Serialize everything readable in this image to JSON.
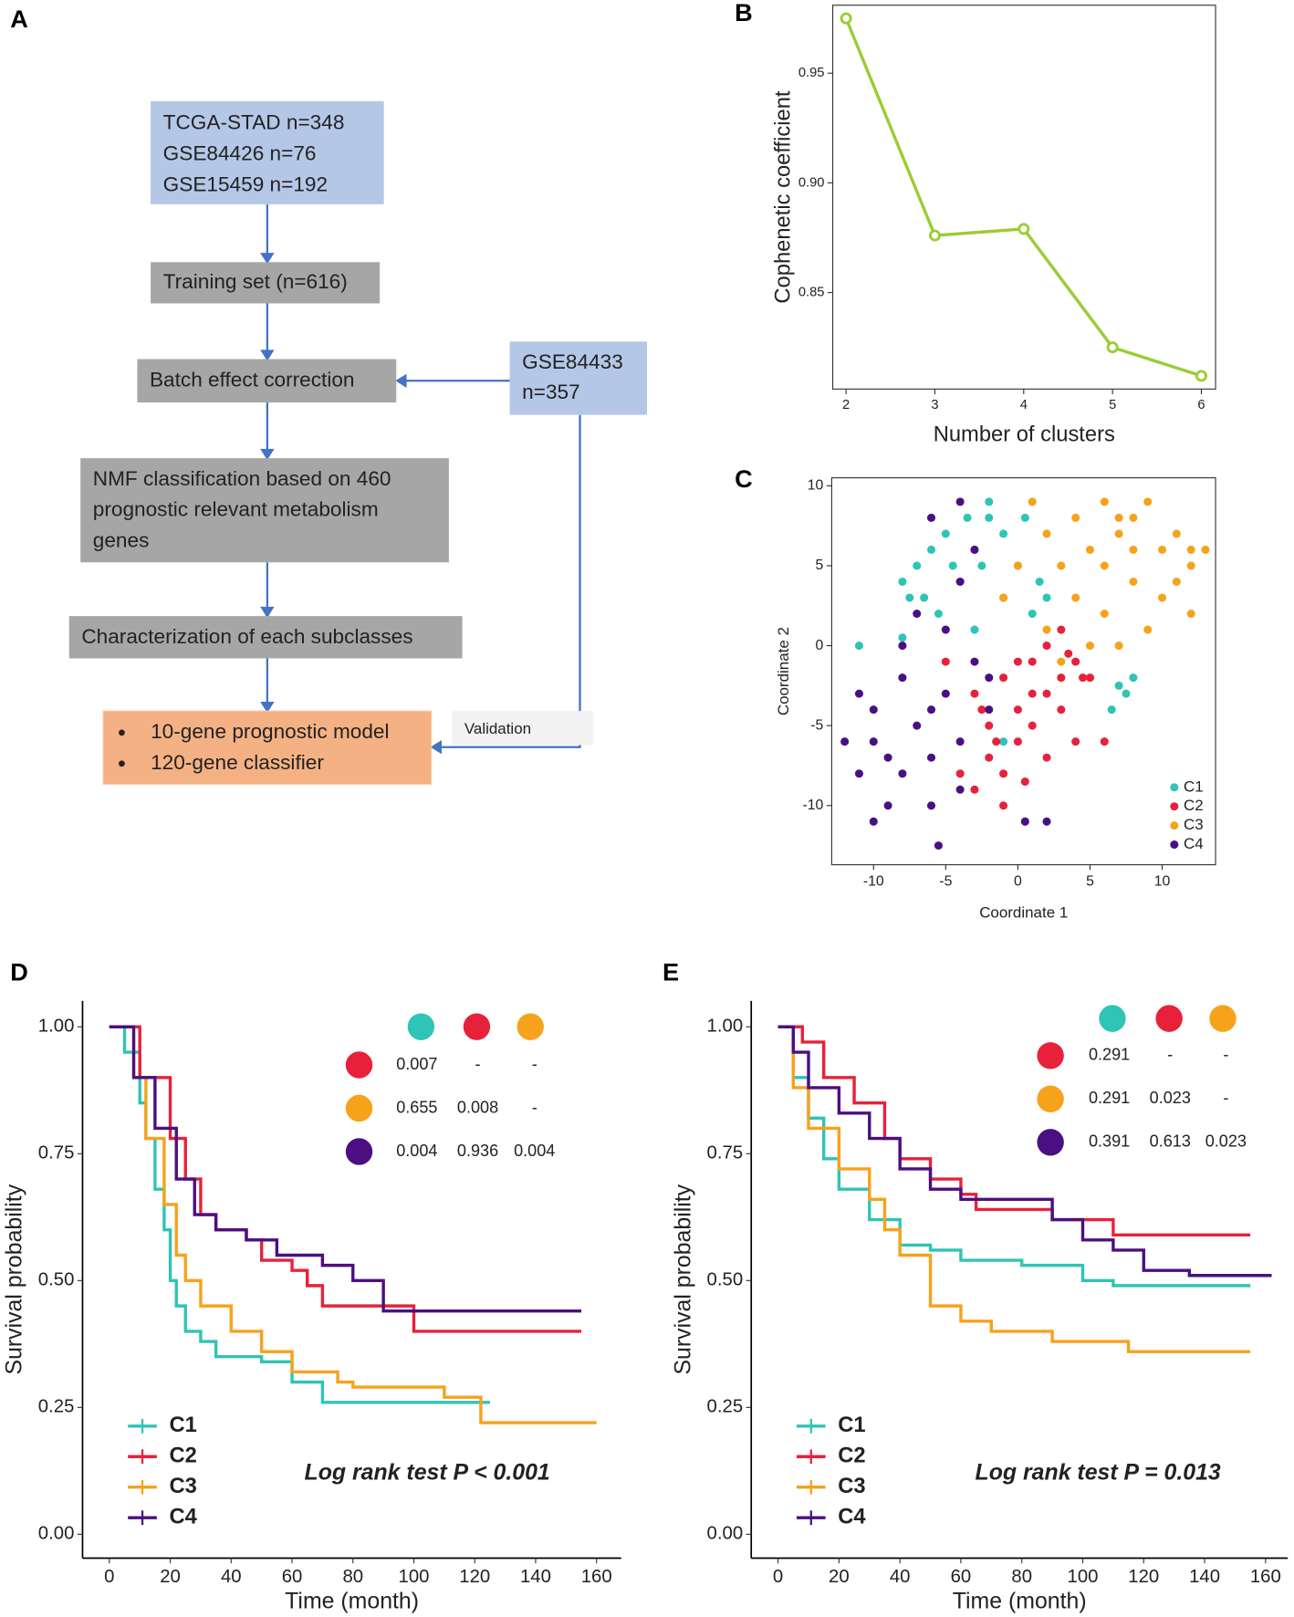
{
  "diagram": {
    "panel": "A",
    "boxes": [
      {
        "lines": [
          "TCGA-STAD n=348",
          "GSE84426 n=76",
          "GSE15459 n=192"
        ]
      },
      {
        "lines": [
          "Training set (n=616)"
        ]
      },
      {
        "lines": [
          "Batch effect correction"
        ]
      },
      {
        "lines": [
          "GSE84433",
          "n=357"
        ]
      },
      {
        "lines": [
          "NMF classification based on 460",
          "prognostic relevant metabolism",
          "genes"
        ]
      },
      {
        "lines": [
          "Characterization of each subclasses"
        ]
      },
      {
        "lines": [
          "10-gene prognostic model",
          "120-gene classifier"
        ]
      }
    ],
    "edge_label": "Validation"
  },
  "chart_data": [
    {
      "type": "line",
      "panel": "B",
      "x_label": "Number of clusters",
      "y_label": "Cophenetic coefficient",
      "x": [
        2,
        3,
        4,
        5,
        6
      ],
      "values": [
        0.975,
        0.876,
        0.879,
        0.825,
        0.812
      ],
      "color": "#9acd32",
      "xlim": [
        1.85,
        6.16
      ],
      "xticks": [
        2,
        3,
        4,
        5,
        6
      ],
      "ylim": [
        0.806,
        0.981
      ],
      "yticks": [
        0.85,
        {
          "value": 0.9,
          "label": "0.90"
        },
        0.95
      ]
    },
    {
      "type": "scatter",
      "panel": "C",
      "x_label": "Coordinate 1",
      "y_label": "Coordinate 2",
      "xlim": [
        -12.9,
        13.7
      ],
      "xticks": [
        -10,
        -5,
        0,
        5,
        10
      ],
      "ylim": [
        -13.7,
        10.5
      ],
      "yticks": [
        -10,
        -5,
        0,
        5,
        10
      ],
      "legend": "bottom-right",
      "series": [
        {
          "name": "C1",
          "color": "#2ec4b6",
          "x": [
            -8,
            -7,
            -6.5,
            -6,
            -5,
            -4,
            -3,
            -2.5,
            -2,
            -1,
            -1,
            0,
            0.5,
            1,
            -5.5,
            -7.5,
            -4.5,
            -3.5,
            -2,
            1.5,
            7,
            7.5,
            8,
            6.5,
            -11,
            -1,
            0.5,
            -8,
            -3,
            2
          ],
          "values": [
            4,
            5,
            3,
            6,
            7,
            4,
            6,
            5,
            8,
            7,
            3,
            5,
            8,
            2,
            2,
            3,
            5,
            8,
            9,
            4,
            -2.5,
            -3,
            -2,
            -4,
            0,
            -6,
            -11,
            0.5,
            1,
            3
          ]
        },
        {
          "name": "C2",
          "color": "#e8213a",
          "x": [
            -3,
            -2,
            -1,
            0,
            1,
            2,
            3,
            4,
            5,
            -2,
            -1,
            0,
            1,
            2,
            3,
            4,
            -4,
            -3,
            2,
            3,
            0,
            1,
            -1,
            6,
            -5,
            -2.5,
            4.5,
            3.5,
            -1.5,
            0.5
          ],
          "values": [
            -3,
            -5,
            -2,
            -4,
            -1,
            -3,
            -2,
            -1,
            -2,
            -7,
            -8,
            -6,
            -5,
            -7,
            -4,
            -6,
            -8,
            -9,
            0,
            1,
            -1,
            -3,
            -10,
            -6,
            -1,
            -4,
            -2,
            -0.5,
            -6,
            -8.5
          ]
        },
        {
          "name": "C3",
          "color": "#f7a21b",
          "x": [
            1,
            2,
            3,
            4,
            5,
            6,
            7,
            8,
            9,
            10,
            11,
            12,
            13,
            2,
            4,
            6,
            8,
            10,
            12,
            3,
            5,
            7,
            9,
            11,
            6,
            8,
            0,
            7,
            12,
            -1
          ],
          "values": [
            9,
            7,
            5,
            8,
            6,
            9,
            7,
            8,
            9,
            6,
            7,
            5,
            6,
            1,
            3,
            2,
            4,
            3,
            2,
            -1,
            0,
            0,
            1,
            4,
            5,
            6,
            5,
            8,
            6,
            3
          ]
        },
        {
          "name": "C4",
          "color": "#4b0f82",
          "x": [
            -12,
            -11,
            -10,
            -9,
            -8,
            -7,
            -6,
            -5,
            -4,
            -3,
            -2,
            -11,
            -10,
            -9,
            -8,
            -7,
            -6,
            -5,
            -4,
            -3,
            -10,
            -8,
            -6,
            -4,
            -2,
            -5.5,
            -4,
            -6,
            0.5,
            2
          ],
          "values": [
            -6,
            -8,
            -4,
            -10,
            -2,
            -5,
            -7,
            -3,
            -9,
            -1,
            -4,
            -3,
            -11,
            -7,
            0,
            2,
            -10,
            1,
            4,
            6,
            -6,
            -8,
            -4,
            -6,
            -2,
            -12.5,
            9,
            8,
            -11,
            -11
          ]
        }
      ]
    },
    {
      "type": "survival",
      "panel": "D",
      "x_label": "Time (month)",
      "y_label": "Survival probability",
      "annotation": "Log rank test P < 0.001",
      "legend": "bottom-left",
      "xlim": [
        -8.8,
        168.1
      ],
      "xticks": [
        0,
        20,
        40,
        60,
        80,
        100,
        120,
        140,
        160
      ],
      "ylim": [
        -0.047,
        1.051
      ],
      "yticks": [
        {
          "value": 0,
          "label": "0.00"
        },
        {
          "value": 0.25,
          "label": "0.25"
        },
        {
          "value": 0.5,
          "label": "0.50"
        },
        {
          "value": 0.75,
          "label": "0.75"
        },
        {
          "value": 1,
          "label": "1.00"
        }
      ],
      "pvalue_table": {
        "column_colors": [
          "#2ec4b6",
          "#e8213a",
          "#f7a21b"
        ],
        "row_colors": [
          "#e8213a",
          "#f7a21b",
          "#4b0f82"
        ],
        "values": [
          [
            0.007,
            "-",
            "-"
          ],
          [
            0.655,
            0.008,
            "-"
          ],
          [
            0.004,
            0.936,
            0.004
          ]
        ]
      },
      "series": [
        {
          "name": "C1",
          "color": "#2ec4b6",
          "x": [
            0,
            5,
            10,
            12,
            15,
            18,
            20,
            22,
            25,
            30,
            35,
            50,
            60,
            70,
            125
          ],
          "values": [
            1,
            0.95,
            0.85,
            0.78,
            0.68,
            0.6,
            0.5,
            0.45,
            0.4,
            0.38,
            0.35,
            0.34,
            0.3,
            0.26,
            0.26
          ]
        },
        {
          "name": "C2",
          "color": "#e8213a",
          "x": [
            0,
            10,
            20,
            25,
            30,
            35,
            45,
            50,
            60,
            65,
            70,
            100,
            155
          ],
          "values": [
            1,
            0.9,
            0.78,
            0.7,
            0.63,
            0.6,
            0.58,
            0.54,
            0.52,
            0.49,
            0.45,
            0.4,
            0.4
          ]
        },
        {
          "name": "C3",
          "color": "#f7a21b",
          "x": [
            0,
            8,
            12,
            18,
            22,
            25,
            30,
            40,
            50,
            60,
            75,
            80,
            110,
            122,
            160
          ],
          "values": [
            1,
            0.9,
            0.78,
            0.65,
            0.55,
            0.5,
            0.45,
            0.4,
            0.36,
            0.32,
            0.3,
            0.29,
            0.27,
            0.22,
            0.22
          ]
        },
        {
          "name": "C4",
          "color": "#4b0f82",
          "x": [
            0,
            8,
            15,
            22,
            28,
            35,
            45,
            55,
            70,
            80,
            90,
            155
          ],
          "values": [
            1,
            0.9,
            0.8,
            0.7,
            0.63,
            0.6,
            0.58,
            0.55,
            0.53,
            0.5,
            0.44,
            0.44
          ]
        }
      ]
    },
    {
      "type": "survival",
      "panel": "E",
      "x_label": "Time (month)",
      "y_label": "Survival probability",
      "annotation": "Log rank test P = 0.013",
      "legend": "bottom-left",
      "xlim": [
        -8.8,
        167.3
      ],
      "xticks": [
        0,
        20,
        40,
        60,
        80,
        100,
        120,
        140,
        160
      ],
      "ylim": [
        -0.047,
        1.051
      ],
      "yticks": [
        {
          "value": 0,
          "label": "0.00"
        },
        {
          "value": 0.25,
          "label": "0.25"
        },
        {
          "value": 0.5,
          "label": "0.50"
        },
        {
          "value": 0.75,
          "label": "0.75"
        },
        {
          "value": 1,
          "label": "1.00"
        }
      ],
      "pvalue_table": {
        "column_colors": [
          "#2ec4b6",
          "#e8213a",
          "#f7a21b"
        ],
        "row_colors": [
          "#e8213a",
          "#f7a21b",
          "#4b0f82"
        ],
        "values": [
          [
            0.291,
            "-",
            "-"
          ],
          [
            0.291,
            0.023,
            "-"
          ],
          [
            0.391,
            0.613,
            0.023
          ]
        ]
      },
      "series": [
        {
          "name": "C1",
          "color": "#2ec4b6",
          "x": [
            0,
            5,
            10,
            15,
            20,
            30,
            40,
            50,
            60,
            80,
            100,
            110,
            155
          ],
          "values": [
            1,
            0.9,
            0.82,
            0.74,
            0.68,
            0.62,
            0.57,
            0.56,
            0.54,
            0.53,
            0.5,
            0.49,
            0.49
          ]
        },
        {
          "name": "C2",
          "color": "#e8213a",
          "x": [
            0,
            8,
            15,
            25,
            35,
            40,
            50,
            60,
            65,
            90,
            110,
            155
          ],
          "values": [
            1,
            0.97,
            0.9,
            0.85,
            0.78,
            0.74,
            0.7,
            0.67,
            0.64,
            0.62,
            0.59,
            0.59
          ]
        },
        {
          "name": "C3",
          "color": "#f7a21b",
          "x": [
            0,
            5,
            10,
            20,
            30,
            35,
            40,
            50,
            60,
            70,
            90,
            115,
            155
          ],
          "values": [
            1,
            0.88,
            0.8,
            0.72,
            0.66,
            0.6,
            0.55,
            0.45,
            0.42,
            0.4,
            0.38,
            0.36,
            0.36
          ]
        },
        {
          "name": "C4",
          "color": "#4b0f82",
          "x": [
            0,
            5,
            10,
            20,
            30,
            40,
            50,
            60,
            90,
            100,
            110,
            120,
            135,
            162
          ],
          "values": [
            1,
            0.95,
            0.88,
            0.83,
            0.78,
            0.72,
            0.68,
            0.66,
            0.62,
            0.58,
            0.56,
            0.52,
            0.51,
            0.51
          ]
        }
      ]
    }
  ]
}
